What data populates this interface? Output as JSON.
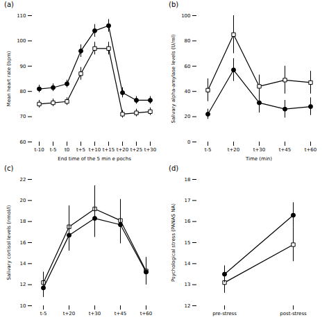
{
  "chart_data": [
    {
      "type": "line",
      "title": "(a)",
      "xlabel": "End time of the 5 min e pochs",
      "ylabel": "Mean heart rate (bpm)",
      "categories": [
        "t-10",
        "t-5",
        "t0",
        "t+5",
        "t+10",
        "t+15",
        "t+20",
        "t+25",
        "t+30"
      ],
      "ylim": [
        60,
        110
      ],
      "yticks": [
        60,
        70,
        80,
        90,
        100,
        110
      ],
      "series": [
        {
          "color": "black",
          "marker": "open_square",
          "values": [
            75,
            75.5,
            76,
            87,
            97,
            97,
            71,
            71.5,
            72
          ],
          "yerr": [
            1.5,
            1.5,
            1.5,
            2.5,
            2.5,
            2.5,
            1.5,
            1.5,
            1.5
          ]
        },
        {
          "color": "black",
          "marker": "circle",
          "values": [
            81,
            81.5,
            83,
            96,
            104,
            106,
            79.5,
            76.5,
            76.5
          ],
          "yerr": [
            1.5,
            1.5,
            1.5,
            2.5,
            2.5,
            2.5,
            2,
            1.5,
            1.5
          ]
        }
      ]
    },
    {
      "type": "line",
      "title": "(b)",
      "xlabel": "Time (min)",
      "ylabel": "Salivary alpha-amylase levels (U/ml)",
      "categories": [
        "t-5",
        "t+20",
        "t+30",
        "t+45",
        "t+60"
      ],
      "ylim": [
        0,
        100
      ],
      "yticks": [
        0,
        20,
        40,
        60,
        80,
        100
      ],
      "series": [
        {
          "color": "black",
          "marker": "open_square",
          "values": [
            41,
            85,
            44,
            49,
            47
          ],
          "yerr": [
            9,
            15,
            9,
            11,
            9
          ]
        },
        {
          "color": "black",
          "marker": "circle",
          "values": [
            22,
            57,
            31,
            26,
            28
          ],
          "yerr": [
            4,
            9,
            8,
            7,
            7
          ]
        }
      ]
    },
    {
      "type": "line",
      "title": "(c)",
      "ylabel": "Salivary cortisol levels (nmol/l)",
      "categories": [
        "t-5",
        "t+20",
        "t+30",
        "t+45",
        "t+60"
      ],
      "ylim": [
        10,
        22
      ],
      "yticks": [
        10,
        12,
        14,
        16,
        18,
        20,
        22
      ],
      "series": [
        {
          "color": "black",
          "marker": "open_square",
          "values": [
            12.2,
            17.5,
            19.2,
            18.1,
            13.3
          ],
          "yerr": [
            1.0,
            2.0,
            2.2,
            2.0,
            1.3
          ]
        },
        {
          "color": "black",
          "marker": "circle",
          "values": [
            11.7,
            16.7,
            18.3,
            17.7,
            13.2
          ],
          "yerr": [
            0.9,
            1.5,
            1.8,
            1.8,
            1.2
          ]
        }
      ]
    },
    {
      "type": "line",
      "title": "(d)",
      "ylabel": "Psychological stress (PANAS NA)",
      "categories": [
        "pre-stress",
        "post-stress"
      ],
      "ylim": [
        12,
        18
      ],
      "yticks": [
        12,
        13,
        14,
        15,
        16,
        17,
        18
      ],
      "series": [
        {
          "color": "black",
          "marker": "open_square",
          "values": [
            13.1,
            14.9
          ],
          "yerr": [
            0.5,
            0.8
          ]
        },
        {
          "color": "black",
          "marker": "circle",
          "values": [
            13.5,
            16.3
          ],
          "yerr": [
            0.4,
            0.6
          ]
        }
      ]
    }
  ]
}
